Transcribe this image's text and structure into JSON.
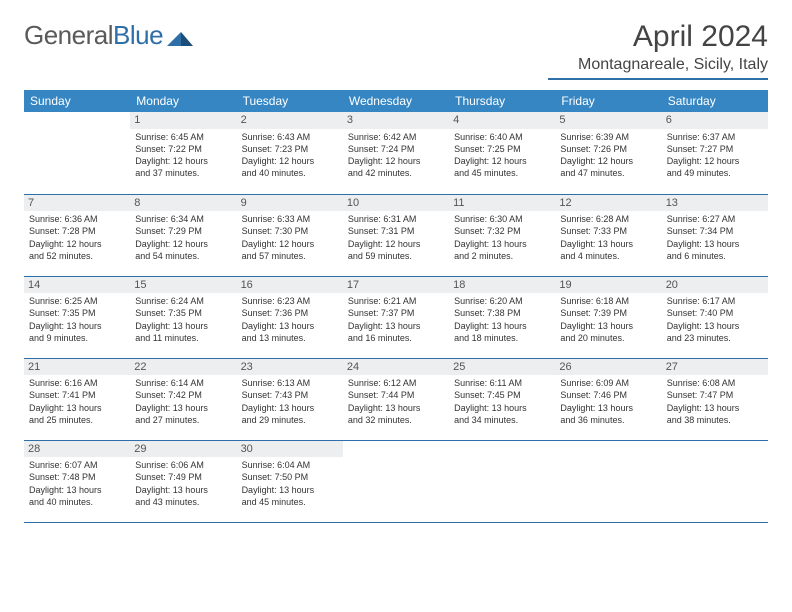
{
  "logo": {
    "text1": "General",
    "text2": "Blue"
  },
  "title": "April 2024",
  "location": "Montagnareale, Sicily, Italy",
  "colors": {
    "header_bg": "#3686c3",
    "header_text": "#ffffff",
    "accent_line": "#2f6fa7",
    "daynum_bg": "#eceeef",
    "text": "#333333",
    "logo_gray": "#5a5a5a",
    "logo_blue": "#2f6fa7",
    "page_bg": "#ffffff"
  },
  "weekdays": [
    "Sunday",
    "Monday",
    "Tuesday",
    "Wednesday",
    "Thursday",
    "Friday",
    "Saturday"
  ],
  "weeks": [
    [
      {
        "day": "",
        "lines": []
      },
      {
        "day": "1",
        "lines": [
          "Sunrise: 6:45 AM",
          "Sunset: 7:22 PM",
          "Daylight: 12 hours",
          "and 37 minutes."
        ]
      },
      {
        "day": "2",
        "lines": [
          "Sunrise: 6:43 AM",
          "Sunset: 7:23 PM",
          "Daylight: 12 hours",
          "and 40 minutes."
        ]
      },
      {
        "day": "3",
        "lines": [
          "Sunrise: 6:42 AM",
          "Sunset: 7:24 PM",
          "Daylight: 12 hours",
          "and 42 minutes."
        ]
      },
      {
        "day": "4",
        "lines": [
          "Sunrise: 6:40 AM",
          "Sunset: 7:25 PM",
          "Daylight: 12 hours",
          "and 45 minutes."
        ]
      },
      {
        "day": "5",
        "lines": [
          "Sunrise: 6:39 AM",
          "Sunset: 7:26 PM",
          "Daylight: 12 hours",
          "and 47 minutes."
        ]
      },
      {
        "day": "6",
        "lines": [
          "Sunrise: 6:37 AM",
          "Sunset: 7:27 PM",
          "Daylight: 12 hours",
          "and 49 minutes."
        ]
      }
    ],
    [
      {
        "day": "7",
        "lines": [
          "Sunrise: 6:36 AM",
          "Sunset: 7:28 PM",
          "Daylight: 12 hours",
          "and 52 minutes."
        ]
      },
      {
        "day": "8",
        "lines": [
          "Sunrise: 6:34 AM",
          "Sunset: 7:29 PM",
          "Daylight: 12 hours",
          "and 54 minutes."
        ]
      },
      {
        "day": "9",
        "lines": [
          "Sunrise: 6:33 AM",
          "Sunset: 7:30 PM",
          "Daylight: 12 hours",
          "and 57 minutes."
        ]
      },
      {
        "day": "10",
        "lines": [
          "Sunrise: 6:31 AM",
          "Sunset: 7:31 PM",
          "Daylight: 12 hours",
          "and 59 minutes."
        ]
      },
      {
        "day": "11",
        "lines": [
          "Sunrise: 6:30 AM",
          "Sunset: 7:32 PM",
          "Daylight: 13 hours",
          "and 2 minutes."
        ]
      },
      {
        "day": "12",
        "lines": [
          "Sunrise: 6:28 AM",
          "Sunset: 7:33 PM",
          "Daylight: 13 hours",
          "and 4 minutes."
        ]
      },
      {
        "day": "13",
        "lines": [
          "Sunrise: 6:27 AM",
          "Sunset: 7:34 PM",
          "Daylight: 13 hours",
          "and 6 minutes."
        ]
      }
    ],
    [
      {
        "day": "14",
        "lines": [
          "Sunrise: 6:25 AM",
          "Sunset: 7:35 PM",
          "Daylight: 13 hours",
          "and 9 minutes."
        ]
      },
      {
        "day": "15",
        "lines": [
          "Sunrise: 6:24 AM",
          "Sunset: 7:35 PM",
          "Daylight: 13 hours",
          "and 11 minutes."
        ]
      },
      {
        "day": "16",
        "lines": [
          "Sunrise: 6:23 AM",
          "Sunset: 7:36 PM",
          "Daylight: 13 hours",
          "and 13 minutes."
        ]
      },
      {
        "day": "17",
        "lines": [
          "Sunrise: 6:21 AM",
          "Sunset: 7:37 PM",
          "Daylight: 13 hours",
          "and 16 minutes."
        ]
      },
      {
        "day": "18",
        "lines": [
          "Sunrise: 6:20 AM",
          "Sunset: 7:38 PM",
          "Daylight: 13 hours",
          "and 18 minutes."
        ]
      },
      {
        "day": "19",
        "lines": [
          "Sunrise: 6:18 AM",
          "Sunset: 7:39 PM",
          "Daylight: 13 hours",
          "and 20 minutes."
        ]
      },
      {
        "day": "20",
        "lines": [
          "Sunrise: 6:17 AM",
          "Sunset: 7:40 PM",
          "Daylight: 13 hours",
          "and 23 minutes."
        ]
      }
    ],
    [
      {
        "day": "21",
        "lines": [
          "Sunrise: 6:16 AM",
          "Sunset: 7:41 PM",
          "Daylight: 13 hours",
          "and 25 minutes."
        ]
      },
      {
        "day": "22",
        "lines": [
          "Sunrise: 6:14 AM",
          "Sunset: 7:42 PM",
          "Daylight: 13 hours",
          "and 27 minutes."
        ]
      },
      {
        "day": "23",
        "lines": [
          "Sunrise: 6:13 AM",
          "Sunset: 7:43 PM",
          "Daylight: 13 hours",
          "and 29 minutes."
        ]
      },
      {
        "day": "24",
        "lines": [
          "Sunrise: 6:12 AM",
          "Sunset: 7:44 PM",
          "Daylight: 13 hours",
          "and 32 minutes."
        ]
      },
      {
        "day": "25",
        "lines": [
          "Sunrise: 6:11 AM",
          "Sunset: 7:45 PM",
          "Daylight: 13 hours",
          "and 34 minutes."
        ]
      },
      {
        "day": "26",
        "lines": [
          "Sunrise: 6:09 AM",
          "Sunset: 7:46 PM",
          "Daylight: 13 hours",
          "and 36 minutes."
        ]
      },
      {
        "day": "27",
        "lines": [
          "Sunrise: 6:08 AM",
          "Sunset: 7:47 PM",
          "Daylight: 13 hours",
          "and 38 minutes."
        ]
      }
    ],
    [
      {
        "day": "28",
        "lines": [
          "Sunrise: 6:07 AM",
          "Sunset: 7:48 PM",
          "Daylight: 13 hours",
          "and 40 minutes."
        ]
      },
      {
        "day": "29",
        "lines": [
          "Sunrise: 6:06 AM",
          "Sunset: 7:49 PM",
          "Daylight: 13 hours",
          "and 43 minutes."
        ]
      },
      {
        "day": "30",
        "lines": [
          "Sunrise: 6:04 AM",
          "Sunset: 7:50 PM",
          "Daylight: 13 hours",
          "and 45 minutes."
        ]
      },
      {
        "day": "",
        "lines": []
      },
      {
        "day": "",
        "lines": []
      },
      {
        "day": "",
        "lines": []
      },
      {
        "day": "",
        "lines": []
      }
    ]
  ]
}
